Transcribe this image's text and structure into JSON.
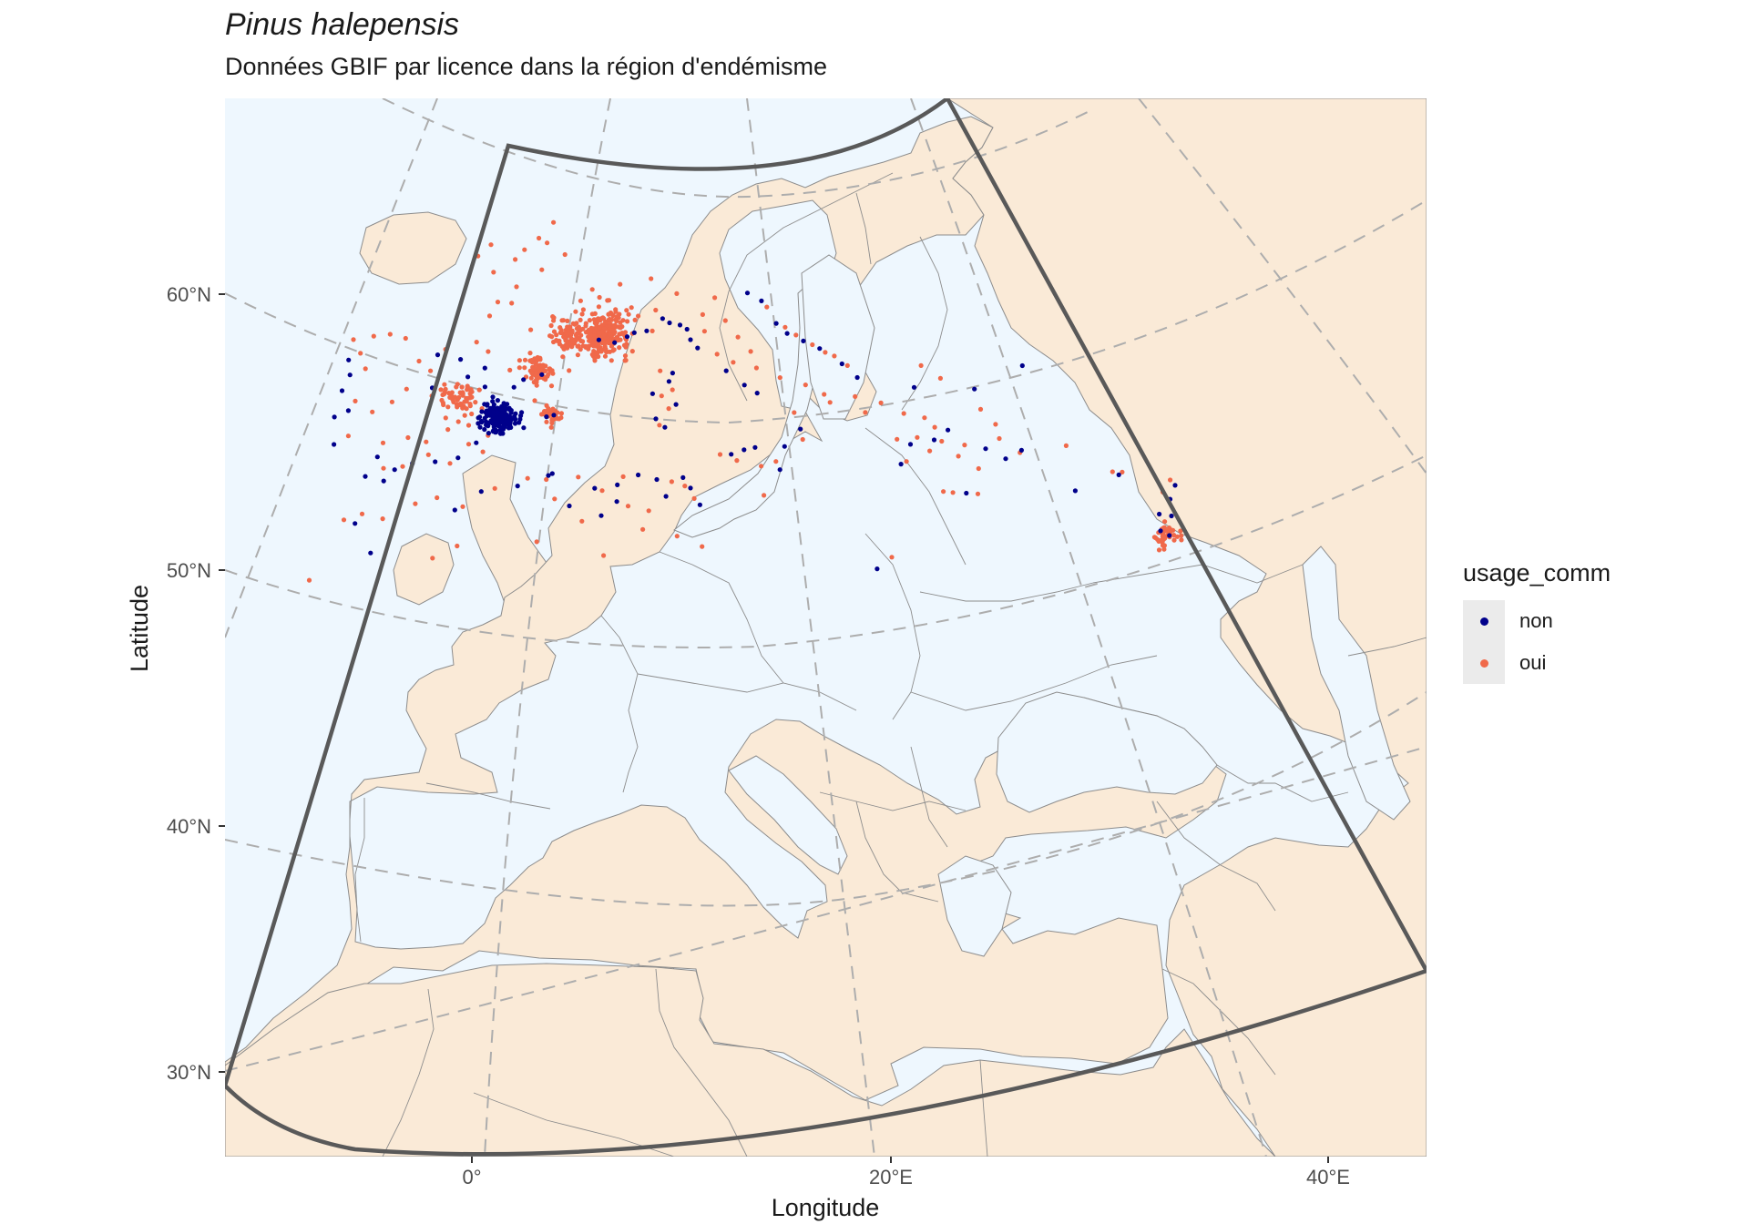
{
  "title": "Pinus halepensis",
  "subtitle": "Données GBIF par licence dans la région d'endémisme",
  "colors": {
    "sea": "#eef7fe",
    "land": "#faead7",
    "border": "#8c8c8c",
    "graticule": "#adadad",
    "extent_frame": "#595959",
    "non": "#00008b",
    "oui": "#f0694a"
  },
  "chart_data": {
    "type": "map",
    "projection": "conic",
    "extent_frame": true,
    "xlabel": "Longitude",
    "ylabel": "Latitude",
    "x_ticks": [
      "0°",
      "20°E",
      "40°E"
    ],
    "y_ticks": [
      "30°N",
      "40°N",
      "50°N",
      "60°N"
    ],
    "legend": {
      "title": "usage_comm",
      "placement": "right",
      "entries": [
        {
          "label": "non",
          "color": "#00008b"
        },
        {
          "label": "oui",
          "color": "#f0694a"
        }
      ]
    },
    "series": [
      {
        "name": "non",
        "color": "#00008b",
        "dense_clusters": [
          {
            "lon": 0.0,
            "lat": 39.3,
            "spread": 0.45,
            "n": 180
          }
        ],
        "points": [
          [
            -8.6,
            41.2
          ],
          [
            -8.4,
            40.5
          ],
          [
            -8.7,
            39.7
          ],
          [
            -8.2,
            38.8
          ],
          [
            -8.9,
            38.4
          ],
          [
            -8.7,
            37.1
          ],
          [
            -6.3,
            36.8
          ],
          [
            -5.3,
            36.3
          ],
          [
            -4.4,
            36.7
          ],
          [
            -3.8,
            40.4
          ],
          [
            -3.7,
            42.0
          ],
          [
            -2.4,
            41.9
          ],
          [
            -1.0,
            41.6
          ],
          [
            -1.9,
            41.1
          ],
          [
            -0.9,
            40.7
          ],
          [
            -1.1,
            38.0
          ],
          [
            -2.0,
            37.2
          ],
          [
            -3.2,
            36.9
          ],
          [
            1.2,
            41.2
          ],
          [
            2.2,
            41.5
          ],
          [
            0.7,
            40.8
          ],
          [
            3.0,
            39.6
          ],
          [
            2.6,
            39.5
          ],
          [
            1.4,
            38.9
          ],
          [
            5.3,
            43.3
          ],
          [
            6.2,
            43.2
          ],
          [
            6.9,
            43.5
          ],
          [
            7.3,
            43.7
          ],
          [
            8.0,
            43.8
          ],
          [
            8.9,
            44.4
          ],
          [
            9.3,
            44.2
          ],
          [
            9.9,
            44.1
          ],
          [
            10.3,
            43.9
          ],
          [
            10.5,
            43.4
          ],
          [
            10.9,
            43.0
          ],
          [
            9.5,
            41.8
          ],
          [
            9.3,
            41.4
          ],
          [
            9.7,
            40.3
          ],
          [
            8.6,
            39.6
          ],
          [
            9.1,
            39.2
          ],
          [
            8.4,
            40.8
          ],
          [
            14.0,
            38.2
          ],
          [
            13.4,
            38.1
          ],
          [
            12.7,
            37.9
          ],
          [
            15.3,
            37.1
          ],
          [
            15.6,
            38.2
          ],
          [
            16.5,
            39.0
          ],
          [
            12.5,
            41.9
          ],
          [
            13.5,
            41.2
          ],
          [
            14.2,
            40.8
          ],
          [
            13.8,
            45.6
          ],
          [
            14.6,
            45.2
          ],
          [
            15.4,
            44.1
          ],
          [
            16.0,
            43.6
          ],
          [
            16.9,
            43.2
          ],
          [
            17.8,
            42.8
          ],
          [
            19.0,
            42.0
          ],
          [
            19.8,
            41.3
          ],
          [
            22.9,
            40.6
          ],
          [
            23.7,
            38.0
          ],
          [
            22.4,
            37.9
          ],
          [
            21.8,
            37.0
          ],
          [
            24.5,
            38.4
          ],
          [
            25.1,
            35.3
          ],
          [
            26.4,
            37.3
          ],
          [
            27.4,
            36.7
          ],
          [
            28.3,
            37.0
          ],
          [
            26.2,
            40.2
          ],
          [
            29.0,
            41.0
          ],
          [
            -6.0,
            32.2
          ],
          [
            -7.0,
            33.5
          ],
          [
            -6.8,
            35.8
          ],
          [
            -5.8,
            35.7
          ],
          [
            -1.9,
            34.7
          ],
          [
            -0.6,
            35.7
          ],
          [
            1.3,
            36.1
          ],
          [
            2.9,
            36.7
          ],
          [
            3.1,
            36.8
          ],
          [
            5.4,
            36.2
          ],
          [
            6.6,
            36.4
          ],
          [
            6.6,
            35.6
          ],
          [
            7.7,
            36.9
          ],
          [
            8.7,
            36.7
          ],
          [
            10.1,
            36.8
          ],
          [
            10.5,
            36.3
          ],
          [
            9.2,
            35.9
          ],
          [
            4.1,
            35.3
          ],
          [
            5.8,
            34.9
          ],
          [
            11.0,
            35.5
          ],
          [
            20.1,
            32.1
          ],
          [
            34.8,
            32.1
          ],
          [
            35.2,
            31.8
          ],
          [
            35.5,
            32.7
          ],
          [
            34.9,
            32.9
          ],
          [
            35.6,
            33.5
          ],
          [
            36.0,
            34.1
          ],
          [
            30.8,
            34.7
          ],
          [
            33.2,
            35.1
          ]
        ]
      },
      {
        "name": "oui",
        "color": "#f0694a",
        "dense_clusters": [
          {
            "lon": 5.6,
            "lat": 43.6,
            "spread": 0.7,
            "n": 260
          },
          {
            "lon": 3.6,
            "lat": 43.4,
            "spread": 0.5,
            "n": 90
          },
          {
            "lon": 2.0,
            "lat": 41.6,
            "spread": 0.45,
            "n": 70
          },
          {
            "lon": 2.9,
            "lat": 39.6,
            "spread": 0.25,
            "n": 40
          },
          {
            "lon": -2.3,
            "lat": 40.0,
            "spread": 0.6,
            "n": 60
          },
          {
            "lon": 35.0,
            "lat": 31.9,
            "spread": 0.35,
            "n": 45
          }
        ],
        "points": [
          [
            -1.3,
            47.5
          ],
          [
            -2.0,
            46.9
          ],
          [
            -1.0,
            46.2
          ],
          [
            0.2,
            46.9
          ],
          [
            0.7,
            47.4
          ],
          [
            1.5,
            48.0
          ],
          [
            2.3,
            48.8
          ],
          [
            2.0,
            47.8
          ],
          [
            3.1,
            47.3
          ],
          [
            1.8,
            46.5
          ],
          [
            0.4,
            45.6
          ],
          [
            0.2,
            44.8
          ],
          [
            -0.6,
            44.8
          ],
          [
            -1.0,
            44.1
          ],
          [
            1.4,
            43.6
          ],
          [
            2.6,
            44.3
          ],
          [
            3.9,
            44.6
          ],
          [
            4.8,
            45.7
          ],
          [
            5.7,
            45.2
          ],
          [
            6.4,
            46.0
          ],
          [
            7.1,
            44.9
          ],
          [
            8.2,
            46.3
          ],
          [
            -8.5,
            42.2
          ],
          [
            -8.0,
            41.6
          ],
          [
            -7.4,
            42.5
          ],
          [
            -6.5,
            42.7
          ],
          [
            -5.6,
            42.6
          ],
          [
            -4.7,
            41.6
          ],
          [
            -4.0,
            41.2
          ],
          [
            -5.2,
            40.2
          ],
          [
            -5.9,
            39.5
          ],
          [
            -6.9,
            38.9
          ],
          [
            -6.1,
            37.5
          ],
          [
            -4.8,
            37.9
          ],
          [
            -3.8,
            37.8
          ],
          [
            -2.7,
            38.5
          ],
          [
            -1.6,
            38.8
          ],
          [
            -0.5,
            38.4
          ],
          [
            -0.7,
            37.6
          ],
          [
            -2.4,
            36.9
          ],
          [
            -4.9,
            36.5
          ],
          [
            -5.9,
            36.3
          ],
          [
            -3.6,
            37.2
          ],
          [
            -1.5,
            37.9
          ],
          [
            0.0,
            39.5
          ],
          [
            -0.4,
            39.5
          ],
          [
            0.4,
            41.6
          ],
          [
            0.9,
            42.1
          ],
          [
            1.9,
            42.3
          ],
          [
            -0.9,
            42.4
          ],
          [
            -1.6,
            42.8
          ],
          [
            -3.3,
            42.3
          ],
          [
            -7.6,
            40.9
          ],
          [
            -7.9,
            39.3
          ],
          [
            -8.0,
            37.6
          ],
          [
            7.5,
            44.5
          ],
          [
            8.5,
            44.8
          ],
          [
            9.7,
            45.6
          ],
          [
            11.2,
            44.6
          ],
          [
            11.9,
            45.4
          ],
          [
            12.5,
            44.3
          ],
          [
            13.2,
            43.5
          ],
          [
            13.9,
            42.8
          ],
          [
            11.3,
            43.8
          ],
          [
            12.0,
            42.7
          ],
          [
            12.9,
            42.3
          ],
          [
            14.2,
            42.0
          ],
          [
            15.5,
            41.5
          ],
          [
            16.9,
            41.1
          ],
          [
            17.9,
            40.6
          ],
          [
            18.2,
            40.2
          ],
          [
            16.2,
            39.8
          ],
          [
            16.6,
            38.5
          ],
          [
            15.1,
            37.5
          ],
          [
            14.3,
            37.3
          ],
          [
            13.0,
            37.6
          ],
          [
            12.1,
            37.9
          ],
          [
            8.8,
            39.3
          ],
          [
            9.3,
            40.1
          ],
          [
            8.9,
            40.7
          ],
          [
            9.5,
            41.0
          ],
          [
            8.8,
            41.9
          ],
          [
            14.4,
            35.9
          ],
          [
            14.9,
            44.9
          ],
          [
            15.9,
            43.9
          ],
          [
            16.5,
            43.5
          ],
          [
            17.4,
            43.0
          ],
          [
            18.1,
            42.6
          ],
          [
            18.6,
            42.4
          ],
          [
            19.3,
            41.9
          ],
          [
            19.6,
            40.4
          ],
          [
            20.1,
            39.6
          ],
          [
            21.0,
            40.0
          ],
          [
            22.2,
            39.4
          ],
          [
            22.8,
            38.2
          ],
          [
            23.4,
            37.5
          ],
          [
            22.1,
            37.1
          ],
          [
            21.7,
            38.2
          ],
          [
            23.8,
            38.6
          ],
          [
            24.1,
            37.9
          ],
          [
            23.3,
            39.1
          ],
          [
            24.4,
            40.9
          ],
          [
            23.4,
            41.6
          ],
          [
            25.3,
            37.6
          ],
          [
            24.9,
            37.1
          ],
          [
            25.9,
            36.4
          ],
          [
            24.4,
            35.4
          ],
          [
            25.7,
            35.2
          ],
          [
            23.9,
            35.5
          ],
          [
            26.4,
            39.2
          ],
          [
            27.1,
            38.4
          ],
          [
            28.2,
            36.9
          ],
          [
            27.2,
            37.7
          ],
          [
            30.7,
            36.9
          ],
          [
            32.9,
            35.3
          ],
          [
            33.4,
            35.2
          ],
          [
            -8.9,
            30.5
          ],
          [
            -7.6,
            33.6
          ],
          [
            -6.7,
            34.0
          ],
          [
            -5.6,
            33.9
          ],
          [
            -4.0,
            34.8
          ],
          [
            -2.9,
            35.2
          ],
          [
            -1.5,
            34.9
          ],
          [
            0.1,
            35.9
          ],
          [
            1.8,
            36.5
          ],
          [
            2.8,
            36.5
          ],
          [
            4.5,
            36.7
          ],
          [
            5.8,
            36.1
          ],
          [
            6.9,
            36.8
          ],
          [
            7.2,
            35.4
          ],
          [
            8.3,
            35.2
          ],
          [
            9.5,
            36.6
          ],
          [
            10.2,
            36.4
          ],
          [
            10.7,
            35.8
          ],
          [
            3.3,
            35.6
          ],
          [
            4.8,
            34.6
          ],
          [
            2.5,
            33.5
          ],
          [
            -2.8,
            32.3
          ],
          [
            -1.6,
            33.0
          ],
          [
            6.0,
            33.0
          ],
          [
            8.0,
            34.3
          ],
          [
            9.8,
            34.0
          ],
          [
            11.1,
            33.5
          ],
          [
            20.9,
            32.6
          ],
          [
            35.3,
            33.9
          ],
          [
            35.8,
            34.4
          ],
          [
            35.1,
            32.5
          ],
          [
            34.8,
            31.2
          ]
        ]
      }
    ]
  }
}
